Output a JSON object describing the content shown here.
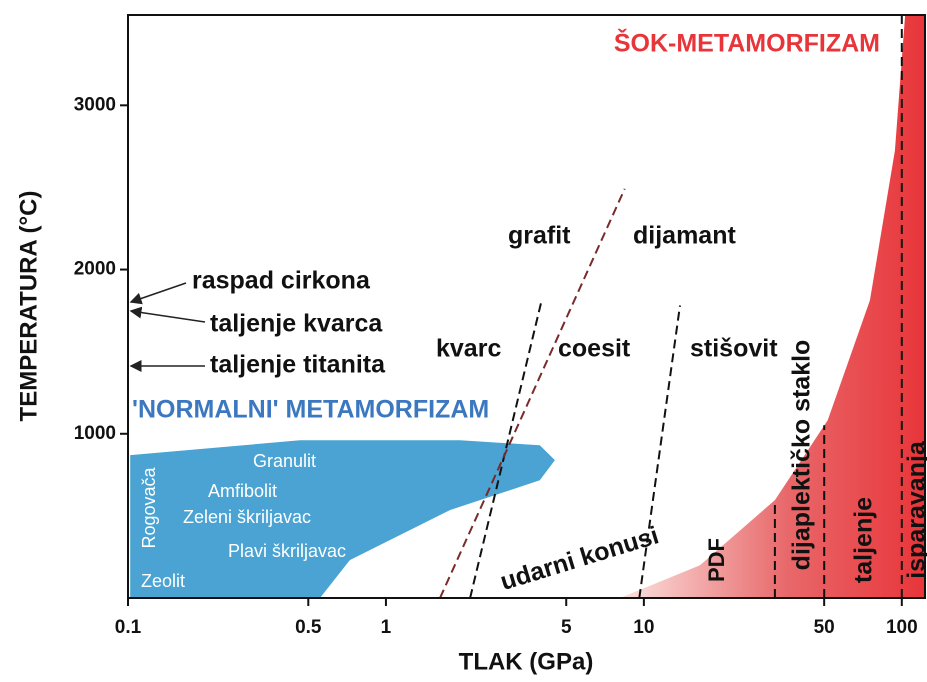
{
  "chart_data": {
    "type": "phase-diagram",
    "xlabel": "TLAK (GPa)",
    "ylabel": "TEMPERATURA (°C)",
    "xscale": "log",
    "xlim": [
      0.1,
      123
    ],
    "ylim": [
      0,
      3550
    ],
    "xticks": [
      0.1,
      0.5,
      1,
      5,
      10,
      50,
      100
    ],
    "yticks": [
      1000,
      2000,
      3000
    ],
    "regions": [
      {
        "color": "#4aa3d2",
        "x": [
          0.102,
          0.102,
          0.464,
          1.94,
          3.95,
          4.52,
          3.95,
          1.77,
          0.724,
          0.555
        ],
        "y": [
          0,
          870,
          960,
          960,
          930,
          840,
          717,
          535,
          231,
          0
        ]
      },
      {
        "color": "#e8353a",
        "x": [
          8.07,
          16.5,
          32.2,
          51.6,
          75.2,
          94,
          103,
          123,
          123
        ],
        "y": [
          0,
          200,
          596,
          1082,
          1812,
          2724,
          3545,
          3545,
          0
        ]
      }
    ],
    "lines": [
      {
        "color": "#111111",
        "x": [
          2.12,
          4.03
        ],
        "y": [
          0,
          1824
        ]
      },
      {
        "color": "#7a2a2a",
        "x": [
          1.62,
          8.43
        ],
        "y": [
          0,
          2492
        ]
      },
      {
        "color": "#111111",
        "x": [
          9.6,
          13.8
        ],
        "y": [
          0,
          1781
        ]
      },
      {
        "color": "#111111",
        "x": [
          32.2,
          32.2
        ],
        "y": [
          0,
          596
        ]
      },
      {
        "color": "#111111",
        "x": [
          50,
          50
        ],
        "y": [
          0,
          1052
        ]
      },
      {
        "color": "#111111",
        "x": [
          100,
          100
        ],
        "y": [
          0,
          3550
        ]
      }
    ],
    "annotations": [
      "ŠOK-METAMORFIZAM",
      "'NORMALNI' METAMORFIZAM",
      "grafit",
      "dijamant",
      "kvarc",
      "coesit",
      "stišovit",
      "raspad cirkona",
      "taljenje kvarca",
      "taljenje titanita",
      "Granulit",
      "Amfibolit",
      "Zeleni škriljavac",
      "Plavi škriljavac",
      "Zeolit",
      "Rogovača",
      "udarni konusi",
      "PDF",
      "dijaplektičko staklo",
      "taljenje",
      "isparavanja"
    ]
  }
}
